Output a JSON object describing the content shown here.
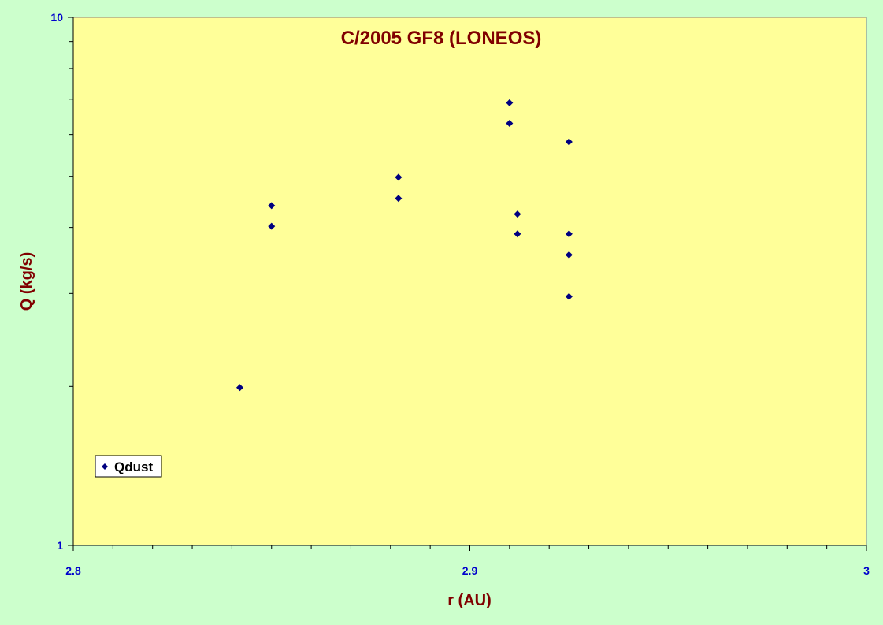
{
  "chart_data": {
    "type": "scatter",
    "title": "C/2005 GF8 (LONEOS)",
    "xlabel": "r (AU)",
    "ylabel": "Q (kg/s)",
    "xlim": [
      2.8,
      3.0
    ],
    "ylim": [
      1,
      10
    ],
    "yscale": "log",
    "x_ticks": [
      "2.8",
      "2.9",
      "3"
    ],
    "y_ticks": [
      "1",
      "10"
    ],
    "grid": false,
    "legend": {
      "position": "bottom-left",
      "entries": [
        "Qdust"
      ]
    },
    "colors": {
      "plot_bg": "#ffff99",
      "page_bg": "#ccffcc",
      "marker": "#000080",
      "tick_text": "#0000cc",
      "title_text": "#800000"
    },
    "series": [
      {
        "name": "Qdust",
        "marker": "diamond",
        "points": [
          {
            "x": 2.842,
            "y": 1.99
          },
          {
            "x": 2.85,
            "y": 4.4
          },
          {
            "x": 2.85,
            "y": 4.02
          },
          {
            "x": 2.882,
            "y": 4.98
          },
          {
            "x": 2.882,
            "y": 4.54
          },
          {
            "x": 2.91,
            "y": 6.89
          },
          {
            "x": 2.91,
            "y": 6.3
          },
          {
            "x": 2.912,
            "y": 4.24
          },
          {
            "x": 2.912,
            "y": 3.89
          },
          {
            "x": 2.925,
            "y": 5.81
          },
          {
            "x": 2.925,
            "y": 3.89
          },
          {
            "x": 2.925,
            "y": 3.55
          },
          {
            "x": 2.925,
            "y": 2.96
          }
        ]
      }
    ]
  }
}
